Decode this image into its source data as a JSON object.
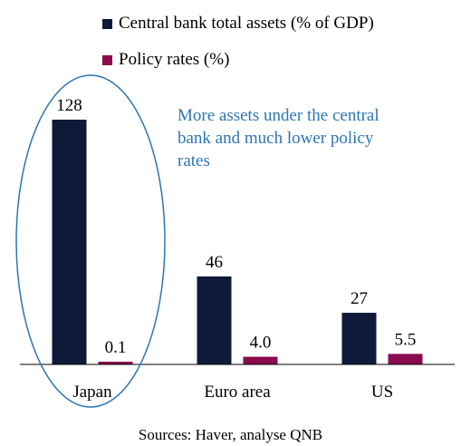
{
  "chart_data": {
    "type": "bar",
    "categories": [
      "Japan",
      "Euro area",
      "US"
    ],
    "series": [
      {
        "name": "Central bank total assets (% of GDP)",
        "values": [
          128,
          46,
          27
        ],
        "labels": [
          "128",
          "46",
          "27"
        ],
        "color": "#0f1a3a"
      },
      {
        "name": "Policy rates (%)",
        "values": [
          0.1,
          4.0,
          5.5
        ],
        "labels": [
          "0.1",
          "4.0",
          "5.5"
        ],
        "color": "#8b0b4f"
      }
    ],
    "ylim": [
      0,
      128
    ],
    "grid": false,
    "legend_position": "top-left",
    "annotation": "More assets under the central bank and much lower policy rates",
    "annotation_color": "#2e75b6",
    "highlight": {
      "category": "Japan",
      "shape": "ellipse",
      "color": "#2e75b6"
    },
    "source": "Sources: Haver, analyse QNB"
  }
}
